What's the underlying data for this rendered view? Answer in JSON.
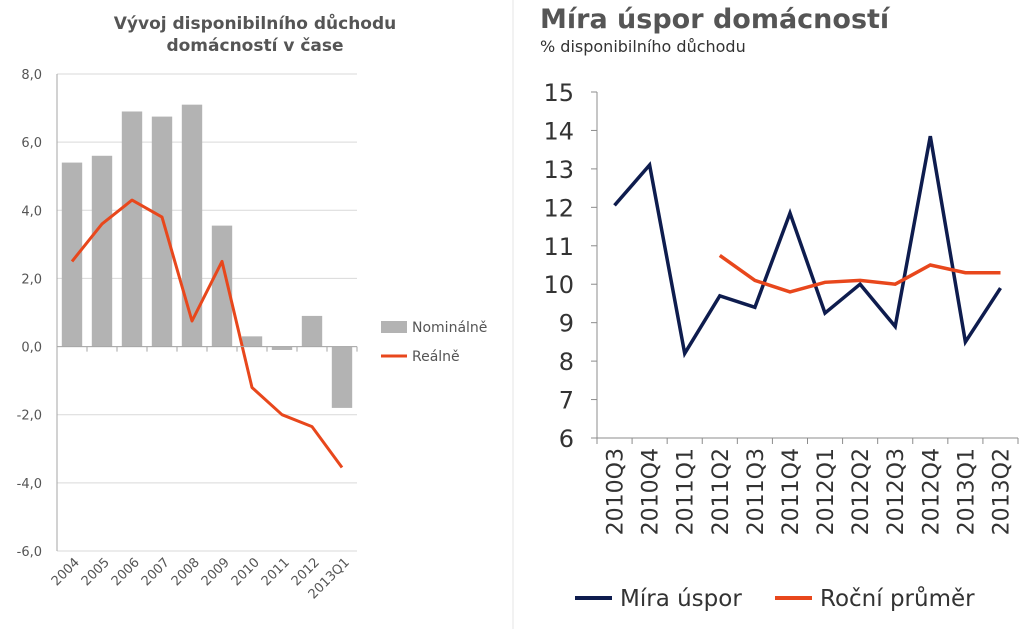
{
  "chart_data": [
    {
      "type": "bar",
      "title": [
        "Vývoj disponibilního důchodu",
        "domácností v čase"
      ],
      "categories": [
        "2004",
        "2005",
        "2006",
        "2007",
        "2008",
        "2009",
        "2010",
        "2011",
        "2012",
        "2013Q1"
      ],
      "y_tick_labels": [
        "8,0",
        "6,0",
        "4,0",
        "2,0",
        "0,0",
        "-2,0",
        "-4,0",
        "-6,0"
      ],
      "ylim": [
        -6,
        8
      ],
      "grid": true,
      "legend_position": "right",
      "series": [
        {
          "name": "Nominálně",
          "kind": "bar",
          "color": "#b3b3b3",
          "values": [
            5.4,
            5.6,
            6.9,
            6.75,
            7.1,
            3.55,
            0.3,
            -0.1,
            0.9,
            -1.8
          ]
        },
        {
          "name": "Reálně",
          "kind": "line",
          "color": "#e8471c",
          "values": [
            2.5,
            3.6,
            4.3,
            3.8,
            0.75,
            2.5,
            -1.2,
            -2.0,
            -2.35,
            -3.55
          ]
        }
      ]
    },
    {
      "type": "line",
      "title": "Míra úspor domácností",
      "subtitle": "% disponibilního důchodu",
      "categories": [
        "2010Q3",
        "2010Q4",
        "2011Q1",
        "2011Q2",
        "2011Q3",
        "2011Q4",
        "2012Q1",
        "2012Q2",
        "2012Q3",
        "2012Q4",
        "2013Q1",
        "2013Q2"
      ],
      "y_tick_labels": [
        "15",
        "14",
        "13",
        "12",
        "11",
        "10",
        "9",
        "8",
        "7",
        "6"
      ],
      "ylim": [
        6,
        15
      ],
      "grid": false,
      "legend_position": "bottom",
      "series": [
        {
          "name": "Míra úspor",
          "color": "#0e1c4e",
          "values": [
            12.05,
            13.1,
            8.2,
            9.7,
            9.4,
            11.85,
            9.25,
            10.0,
            8.9,
            13.85,
            8.5,
            9.9
          ]
        },
        {
          "name": "Roční průměr",
          "color": "#e8471c",
          "values": [
            null,
            null,
            null,
            10.75,
            10.1,
            9.8,
            10.05,
            10.1,
            10.0,
            10.5,
            10.3,
            10.3
          ]
        }
      ]
    }
  ]
}
